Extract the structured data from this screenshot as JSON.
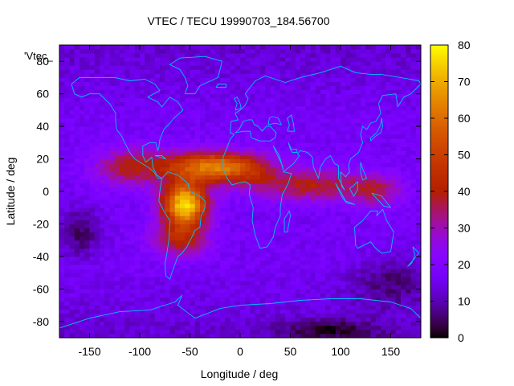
{
  "chart_data": {
    "type": "heatmap",
    "title": "VTEC / TECU 19990703_184.56700",
    "xlabel": "Longitude / deg",
    "ylabel": "Latitude / deg",
    "legend_label": "'Vtec_",
    "xlim": [
      -180,
      180
    ],
    "ylim": [
      -90,
      90
    ],
    "x_ticks": [
      -150,
      -100,
      -50,
      0,
      50,
      100,
      150
    ],
    "y_ticks": [
      -80,
      -60,
      -40,
      -20,
      0,
      20,
      40,
      60,
      80
    ],
    "colorbar": {
      "min": 0,
      "max": 80,
      "ticks": [
        0,
        10,
        20,
        30,
        40,
        50,
        60,
        70,
        80
      ],
      "palette": "gnuplot pm3d default (black-blue-purple-red-orange-yellow)"
    },
    "grid_resolution": {
      "dlon": 5,
      "dlat": 2.5
    },
    "features": [
      {
        "name": "equatorial-anomaly-peak",
        "lon": -55,
        "lat": -10,
        "value": 78
      },
      {
        "name": "atlantic-crest-north",
        "lon": -35,
        "lat": 12,
        "value": 62
      },
      {
        "name": "africa-west-crest",
        "lon": -10,
        "lat": 14,
        "value": 58
      },
      {
        "name": "south-america-crest",
        "lon": -55,
        "lat": -28,
        "value": 55
      },
      {
        "name": "indian-ocean-tail",
        "lon": 85,
        "lat": 2,
        "value": 42
      },
      {
        "name": "west-pacific-tail",
        "lon": 140,
        "lat": 0,
        "value": 38
      },
      {
        "name": "polar-south-minimum",
        "lon": 80,
        "lat": -82,
        "value": 2
      }
    ],
    "background_level": 17
  },
  "colors": {
    "frame": "#000000",
    "coastline": "#00bfff"
  }
}
